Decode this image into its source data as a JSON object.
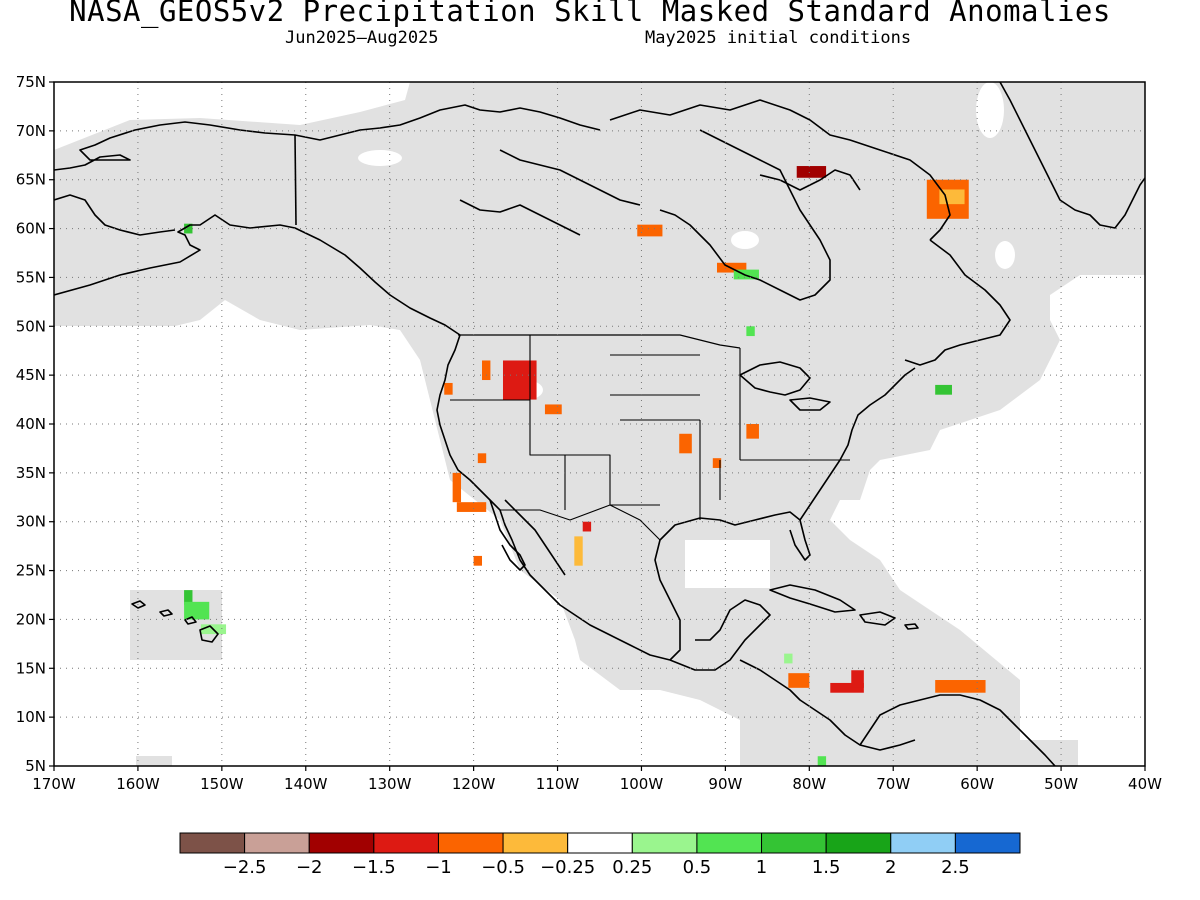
{
  "title": "NASA_GEOS5v2 Precipitation Skill Masked Standard Anomalies",
  "period": "Jun2025—Aug2025",
  "init": "May2025 initial conditions",
  "map": {
    "lon_range": [
      -170,
      -40
    ],
    "lat_range": [
      5,
      75
    ],
    "mask_color": "#e1e1e1",
    "land_outline_color": "#000000"
  },
  "lat_labels": [
    "75N",
    "70N",
    "65N",
    "60N",
    "55N",
    "50N",
    "45N",
    "40N",
    "35N",
    "30N",
    "25N",
    "20N",
    "15N",
    "10N",
    "5N"
  ],
  "lon_labels": [
    "170W",
    "160W",
    "150W",
    "140W",
    "130W",
    "120W",
    "110W",
    "100W",
    "90W",
    "80W",
    "70W",
    "60W",
    "50W",
    "40W"
  ],
  "colorbar": {
    "colors": [
      "#7d5248",
      "#c9a097",
      "#a10000",
      "#dd1a13",
      "#fb6400",
      "#fdba3a",
      "#ffffff",
      "#9af58e",
      "#52e452",
      "#34c434",
      "#18a418",
      "#90cef5",
      "#1668d2"
    ],
    "labels": [
      "-2.5",
      "-2",
      "-1.5",
      "-1",
      "-0.5",
      "-0.25",
      "0.25",
      "0.5",
      "1",
      "1.5",
      "2",
      "2.5"
    ]
  },
  "anomaly_patches": [
    {
      "lon": [
        -81.5,
        -78.0
      ],
      "lat": [
        65.2,
        66.4
      ],
      "color": "#a10000"
    },
    {
      "lon": [
        -116.5,
        -112.5
      ],
      "lat": [
        42.5,
        46.5
      ],
      "color": "#dd1a13"
    },
    {
      "lon": [
        -66.0,
        -61.0
      ],
      "lat": [
        61.0,
        65.0
      ],
      "color": "#fb6400"
    },
    {
      "lon": [
        -64.5,
        -61.5
      ],
      "lat": [
        62.5,
        64.0
      ],
      "color": "#fdba3a"
    },
    {
      "lon": [
        -100.5,
        -97.5
      ],
      "lat": [
        59.2,
        60.4
      ],
      "color": "#fb6400"
    },
    {
      "lon": [
        -91.0,
        -87.5
      ],
      "lat": [
        55.5,
        56.5
      ],
      "color": "#fb6400"
    },
    {
      "lon": [
        -89.0,
        -86.0
      ],
      "lat": [
        54.8,
        55.8
      ],
      "color": "#52e452"
    },
    {
      "lon": [
        -87.5,
        -86.5
      ],
      "lat": [
        49.0,
        50.0
      ],
      "color": "#52e452"
    },
    {
      "lon": [
        -123.5,
        -122.5
      ],
      "lat": [
        43.0,
        44.2
      ],
      "color": "#fb6400"
    },
    {
      "lon": [
        -119.0,
        -118.0
      ],
      "lat": [
        44.5,
        46.5
      ],
      "color": "#fb6400"
    },
    {
      "lon": [
        -111.5,
        -109.5
      ],
      "lat": [
        41.0,
        42.0
      ],
      "color": "#fb6400"
    },
    {
      "lon": [
        -119.5,
        -118.5
      ],
      "lat": [
        36.0,
        37.0
      ],
      "color": "#fb6400"
    },
    {
      "lon": [
        -122.5,
        -121.5
      ],
      "lat": [
        32.0,
        35.0
      ],
      "color": "#fb6400"
    },
    {
      "lon": [
        -122.0,
        -118.5
      ],
      "lat": [
        31.0,
        32.0
      ],
      "color": "#fb6400"
    },
    {
      "lon": [
        -120.0,
        -119.0
      ],
      "lat": [
        25.5,
        26.5
      ],
      "color": "#fb6400"
    },
    {
      "lon": [
        -107.0,
        -106.0
      ],
      "lat": [
        29.0,
        30.0
      ],
      "color": "#dd1a13"
    },
    {
      "lon": [
        -108.0,
        -107.0
      ],
      "lat": [
        25.5,
        28.5
      ],
      "color": "#fdba3a"
    },
    {
      "lon": [
        -95.5,
        -94.0
      ],
      "lat": [
        37.0,
        39.0
      ],
      "color": "#fb6400"
    },
    {
      "lon": [
        -91.5,
        -90.5
      ],
      "lat": [
        35.5,
        36.5
      ],
      "color": "#fb6400"
    },
    {
      "lon": [
        -87.5,
        -86.0
      ],
      "lat": [
        38.5,
        40.0
      ],
      "color": "#fb6400"
    },
    {
      "lon": [
        -65.0,
        -63.0
      ],
      "lat": [
        43.0,
        44.0
      ],
      "color": "#34c434"
    },
    {
      "lon": [
        -154.5,
        -153.5
      ],
      "lat": [
        21.5,
        23.0
      ],
      "color": "#34c434"
    },
    {
      "lon": [
        -154.5,
        -151.5
      ],
      "lat": [
        20.0,
        21.8
      ],
      "color": "#52e452"
    },
    {
      "lon": [
        -152.5,
        -149.5
      ],
      "lat": [
        18.5,
        19.5
      ],
      "color": "#9af58e"
    },
    {
      "lon": [
        -154.5,
        -153.5
      ],
      "lat": [
        59.5,
        60.5
      ],
      "color": "#34c434"
    },
    {
      "lon": [
        -82.5,
        -80.0
      ],
      "lat": [
        13.0,
        14.5
      ],
      "color": "#fb6400"
    },
    {
      "lon": [
        -77.5,
        -73.5
      ],
      "lat": [
        12.5,
        13.5
      ],
      "color": "#dd1a13"
    },
    {
      "lon": [
        -75.0,
        -73.5
      ],
      "lat": [
        13.0,
        14.8
      ],
      "color": "#dd1a13"
    },
    {
      "lon": [
        -65.0,
        -59.0
      ],
      "lat": [
        12.5,
        13.8
      ],
      "color": "#fb6400"
    },
    {
      "lon": [
        -83.0,
        -82.0
      ],
      "lat": [
        15.5,
        16.5
      ],
      "color": "#9af58e"
    },
    {
      "lon": [
        -79.0,
        -78.0
      ],
      "lat": [
        5.0,
        6.0
      ],
      "color": "#52e452"
    }
  ]
}
